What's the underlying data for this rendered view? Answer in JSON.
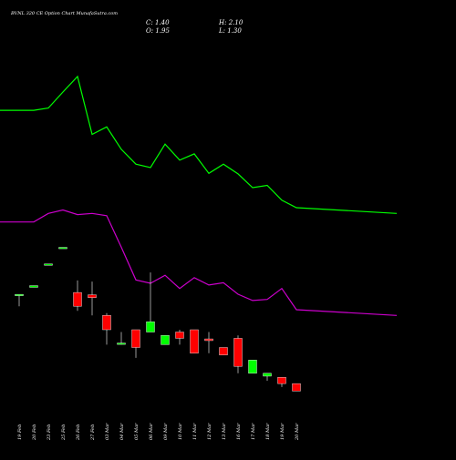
{
  "chart_data": {
    "type": "candlestick",
    "title": "BVNL 320 CE Option Chart MunafaSutra.com",
    "ohlc": {
      "close_label": "C: 1.40",
      "high_label": "H: 2.10",
      "open_label": "O: 1.95",
      "low_label": "L: 1.30"
    },
    "categories": [
      "19 Feb",
      "20 Feb",
      "23 Feb",
      "25 Feb",
      "26 Feb",
      "27 Feb",
      "03 Mar",
      "04 Mar",
      "05 Mar",
      "06 Mar",
      "09 Mar",
      "10 Mar",
      "11 Mar",
      "12 Mar",
      "13 Mar",
      "16 Mar",
      "17 Mar",
      "18 Mar",
      "19 Mar",
      "20 Mar"
    ],
    "candles": [
      {
        "open": 12.5,
        "high": 12.5,
        "low": 10.5,
        "close": 12.5
      },
      {
        "open": 13.8,
        "high": 14.1,
        "low": 13.8,
        "close": 14.1
      },
      {
        "open": 17.8,
        "high": 17.8,
        "low": 17.8,
        "close": 17.8
      },
      {
        "open": 20.7,
        "high": 20.7,
        "low": 20.7,
        "close": 20.7
      },
      {
        "open": 12.9,
        "high": 15.0,
        "low": 9.7,
        "close": 10.5
      },
      {
        "open": 12.5,
        "high": 14.8,
        "low": 8.9,
        "close": 12.0
      },
      {
        "open": 8.9,
        "high": 9.3,
        "low": 3.8,
        "close": 6.4
      },
      {
        "open": 3.8,
        "high": 6.0,
        "low": 3.8,
        "close": 4.0
      },
      {
        "open": 6.4,
        "high": 6.4,
        "low": 1.5,
        "close": 3.3
      },
      {
        "open": 6.0,
        "high": 16.4,
        "low": 6.0,
        "close": 7.8
      },
      {
        "open": 3.8,
        "high": 5.4,
        "low": 3.8,
        "close": 5.4
      },
      {
        "open": 6.0,
        "high": 6.4,
        "low": 3.8,
        "close": 4.9
      },
      {
        "open": 6.4,
        "high": 6.4,
        "low": 2.3,
        "close": 2.3
      },
      {
        "open": 4.8,
        "high": 6.0,
        "low": 2.3,
        "close": 4.5
      },
      {
        "open": 3.3,
        "high": 3.3,
        "low": 2.0,
        "close": 2.0
      },
      {
        "open": 4.9,
        "high": 5.4,
        "low": -1.2,
        "close": 0.0
      },
      {
        "open": -1.2,
        "high": 1.1,
        "low": -1.2,
        "close": 1.1
      },
      {
        "open": -1.7,
        "high": -1.2,
        "low": -2.5,
        "close": -1.2
      },
      {
        "open": -1.9,
        "high": -1.9,
        "low": -3.6,
        "close": -3.0
      },
      {
        "open": -3.0,
        "high": -3.0,
        "low": -4.3,
        "close": -4.3
      }
    ],
    "ma_series": [
      {
        "color": "#00ff00",
        "values": [
          44.7,
          44.7,
          45.1,
          47.9,
          50.6,
          40.5,
          41.8,
          37.9,
          35.3,
          34.7,
          38.8,
          36.0,
          37.1,
          33.7,
          35.3,
          33.6,
          31.2,
          31.6,
          29.0,
          27.7
        ]
      },
      {
        "color": "#cc00cc",
        "values": [
          25.2,
          25.2,
          26.7,
          27.3,
          26.5,
          26.7,
          26.3,
          20.8,
          15.1,
          14.5,
          15.9,
          13.6,
          15.5,
          14.2,
          14.6,
          12.6,
          11.5,
          11.7,
          13.6,
          9.9
        ]
      }
    ],
    "bull_color": "#00ff00",
    "bear_color": "#ff0000",
    "ylim": [
      -6,
      56
    ],
    "grid": false
  }
}
